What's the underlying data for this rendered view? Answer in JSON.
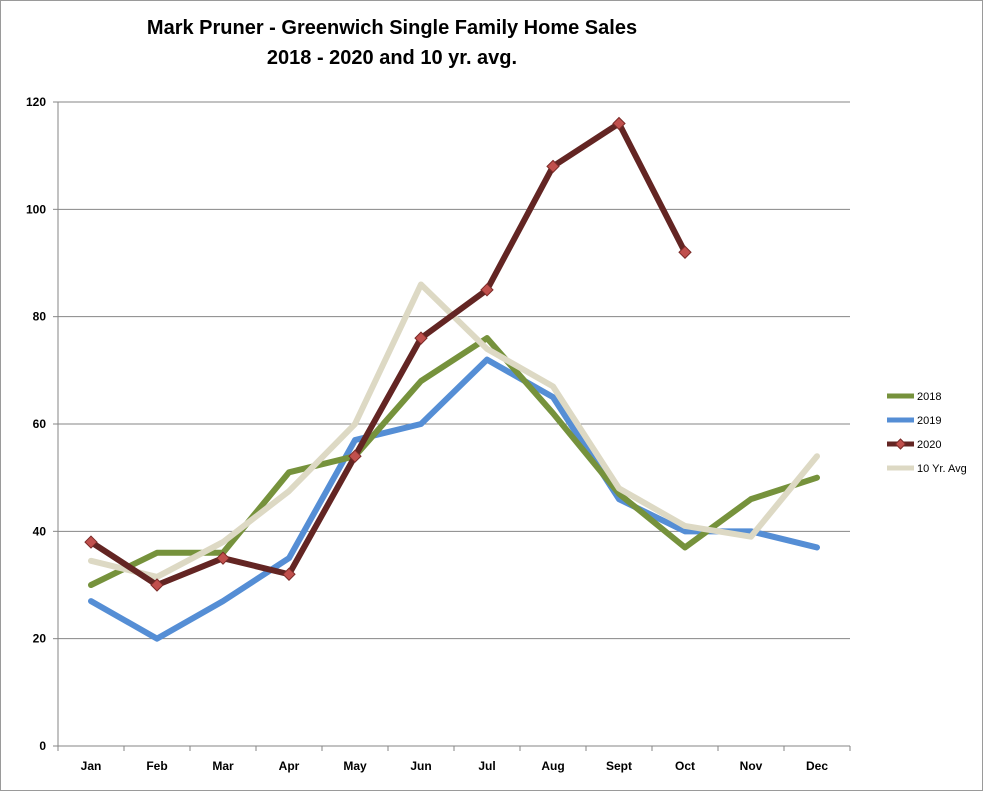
{
  "chart_data": {
    "type": "line",
    "title": "Mark Pruner - Greenwich Single Family Home Sales",
    "subtitle": "2018 - 2020 and 10 yr. avg.",
    "xlabel": "",
    "ylabel": "",
    "ylim": [
      0,
      120
    ],
    "yticks": [
      0,
      20,
      40,
      60,
      80,
      100,
      120
    ],
    "grid": true,
    "legend_position": "right",
    "categories": [
      "Jan",
      "Feb",
      "Mar",
      "Apr",
      "May",
      "Jun",
      "Jul",
      "Aug",
      "Sept",
      "Oct",
      "Nov",
      "Dec"
    ],
    "series": [
      {
        "name": "2018",
        "color": "#76923c",
        "marker": "none",
        "values": [
          30,
          36,
          36,
          51,
          54,
          68,
          76,
          62,
          47,
          37,
          46,
          50
        ]
      },
      {
        "name": "2019",
        "color": "#558ed5",
        "marker": "none",
        "values": [
          27,
          20,
          27,
          35,
          57,
          60,
          72,
          65,
          46,
          40,
          40,
          37
        ]
      },
      {
        "name": "2020",
        "color": "#632523",
        "marker": "diamond",
        "marker_color": "#c0504d",
        "values": [
          38,
          30,
          35,
          32,
          54,
          76,
          85,
          108,
          116,
          92,
          null,
          null
        ]
      },
      {
        "name": "10 Yr. Avg",
        "color": "#ddd9c4",
        "marker": "none",
        "values": [
          34.5,
          31.5,
          38,
          47.5,
          60,
          86,
          74,
          67,
          48,
          41,
          39,
          54
        ]
      }
    ]
  }
}
